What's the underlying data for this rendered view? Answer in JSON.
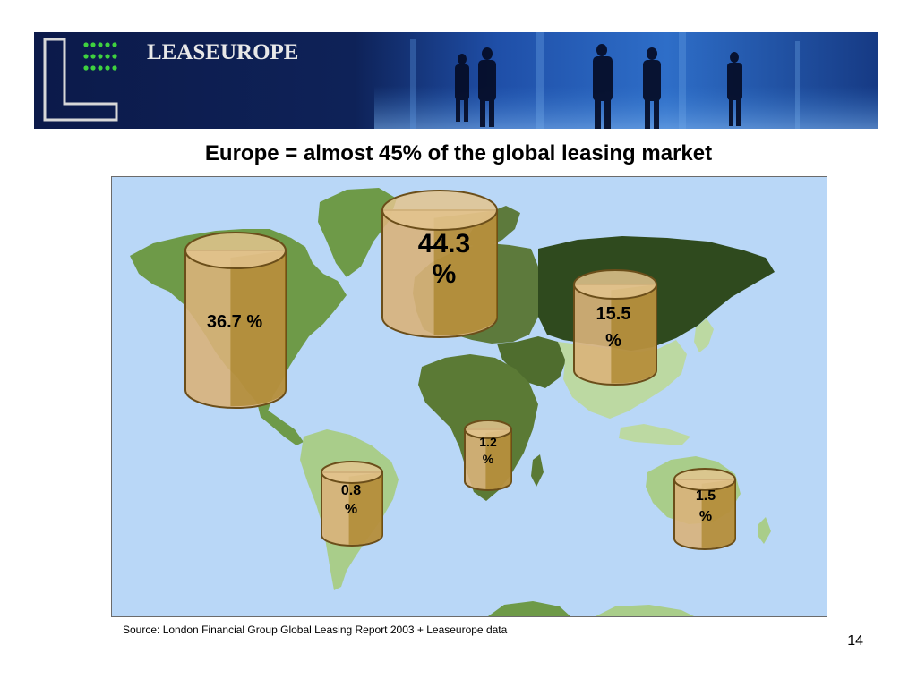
{
  "banner": {
    "brand": "LEASEUROPE"
  },
  "title": "Europe = almost 45% of the global leasing market",
  "markets": [
    {
      "region": "North America",
      "share": 36.7,
      "label": "36.7 %",
      "marker": "6"
    },
    {
      "region": "Europe",
      "share": 44.3,
      "label": "44.3 %",
      "marker": "1"
    },
    {
      "region": "Asia",
      "share": 15.5,
      "label": "15.5 %",
      "marker": "2"
    },
    {
      "region": "Africa",
      "share": 1.2,
      "label": "1.2 %",
      "marker": "4"
    },
    {
      "region": "South America",
      "share": 0.8,
      "label": "0.8 %",
      "marker": "5"
    },
    {
      "region": "Oceania",
      "share": 1.5,
      "label": "1.5 %",
      "marker": "3"
    }
  ],
  "colors": {
    "ocean": "#b9d7f7",
    "europe": "#5d7a3c",
    "north_america": "#6e9a48",
    "asia": "#2f4a1e",
    "middle_east": "#4f6d2e",
    "africa": "#5b7a35",
    "south_asia": "#bcd9a2",
    "south_america": "#a9cd8a",
    "oceania": "#a9cd8a",
    "cylinder_fill": "#d9b27a",
    "cylinder_shadow": "#a07a18",
    "cylinder_stroke": "#6b4e1a"
  },
  "source": "Source: London Financial Group Global Leasing Report 2003 + Leaseurope data",
  "page_number": "14"
}
